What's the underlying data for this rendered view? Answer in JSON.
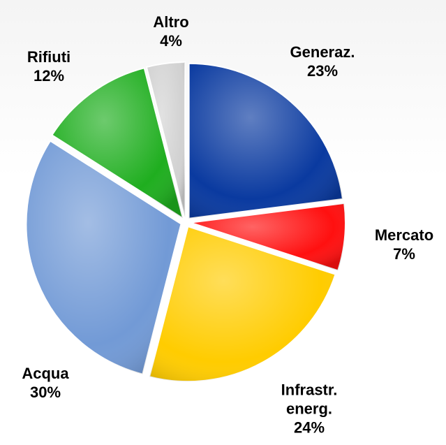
{
  "chart_data": {
    "type": "pie",
    "categories": [
      "Generaz.",
      "Mercato",
      "Infrastr. energ.",
      "Acqua",
      "Rifiuti",
      "Altro"
    ],
    "values": [
      23,
      7,
      24,
      30,
      12,
      4
    ],
    "value_labels": [
      "23%",
      "7%",
      "24%",
      "30%",
      "12%",
      "4%"
    ],
    "colors": [
      "#0a3aa0",
      "#ff1010",
      "#ffcc00",
      "#729ad6",
      "#1fae1f",
      "#d2d2d2"
    ]
  }
}
